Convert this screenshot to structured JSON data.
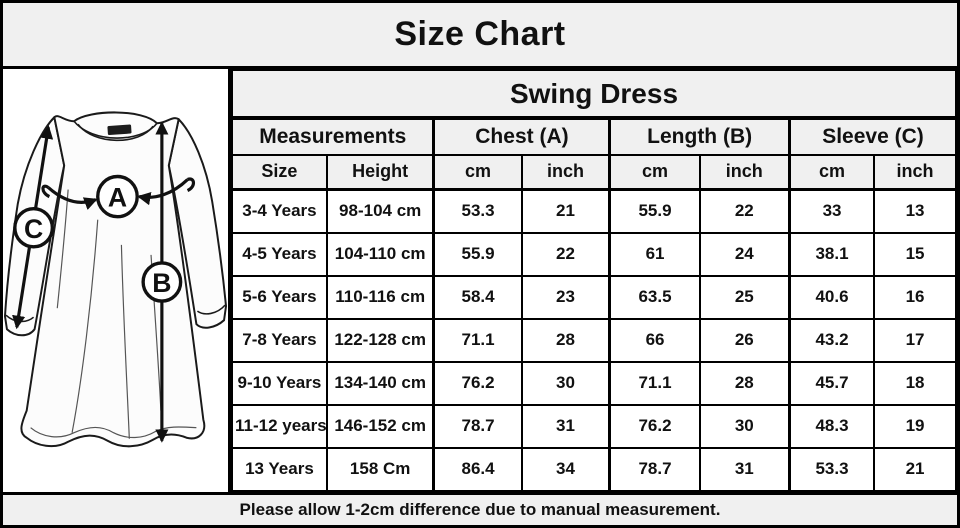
{
  "chart_data": {
    "type": "table",
    "title": "Size Chart",
    "product": "Swing Dress",
    "column_groups": [
      "Measurements",
      "Chest (A)",
      "Length (B)",
      "Sleeve (C)"
    ],
    "sub_headers": [
      "Size",
      "Height",
      "cm",
      "inch",
      "cm",
      "inch",
      "cm",
      "inch"
    ],
    "columns": [
      "Size",
      "Height",
      "Chest (A) cm",
      "Chest (A) inch",
      "Length (B) cm",
      "Length (B) inch",
      "Sleeve (C) cm",
      "Sleeve (C) inch"
    ],
    "rows": [
      [
        "3-4 Years",
        "98-104 cm",
        "53.3",
        "21",
        "55.9",
        "22",
        "33",
        "13"
      ],
      [
        "4-5 Years",
        "104-110 cm",
        "55.9",
        "22",
        "61",
        "24",
        "38.1",
        "15"
      ],
      [
        "5-6 Years",
        "110-116 cm",
        "58.4",
        "23",
        "63.5",
        "25",
        "40.6",
        "16"
      ],
      [
        "7-8 Years",
        "122-128 cm",
        "71.1",
        "28",
        "66",
        "26",
        "43.2",
        "17"
      ],
      [
        "9-10 Years",
        "134-140 cm",
        "76.2",
        "30",
        "71.1",
        "28",
        "45.7",
        "18"
      ],
      [
        "11-12 years",
        "146-152 cm",
        "78.7",
        "31",
        "76.2",
        "30",
        "48.3",
        "19"
      ],
      [
        "13 Years",
        "158 Cm",
        "86.4",
        "34",
        "78.7",
        "31",
        "53.3",
        "21"
      ]
    ],
    "footnote": "Please allow 1-2cm difference due to manual measurement."
  },
  "diagram": {
    "markers": [
      "A",
      "B",
      "C"
    ]
  },
  "colors": {
    "band_bg": "#f0f0f0",
    "cell_bg": "#ffffff",
    "border": "#000000",
    "text": "#111111"
  }
}
